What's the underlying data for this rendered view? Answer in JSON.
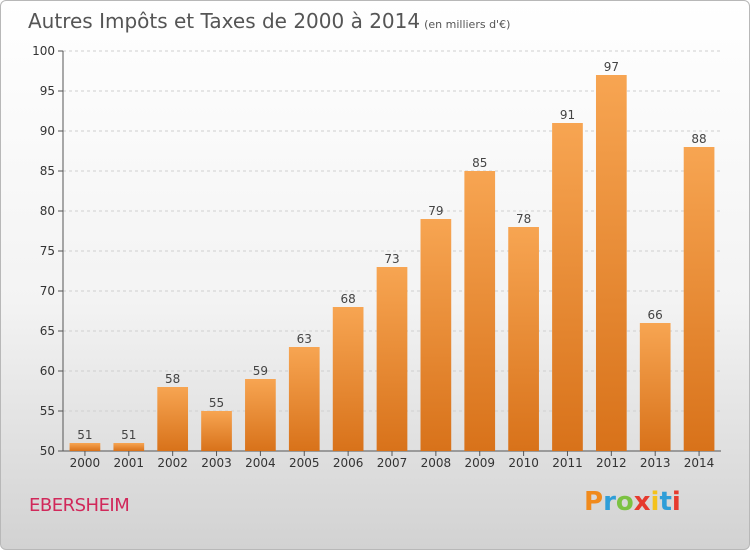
{
  "title": "Autres Impôts et Taxes de 2000 à 2014",
  "subtitle": "(en milliers d'€)",
  "place": "EBERSHEIM",
  "logo": {
    "letters": [
      "P",
      "r",
      "o",
      "x",
      "i",
      "t",
      "i"
    ],
    "colors": [
      "#f08a1c",
      "#2f9ed8",
      "#7cc242",
      "#e63a2e",
      "#f4c21c",
      "#2f9ed8",
      "#e63a2e"
    ]
  },
  "colors": {
    "bar_top": "#f7a552",
    "bar_bottom": "#d8721a",
    "grid": "#cfcfcf"
  },
  "chart_data": {
    "type": "bar",
    "categories": [
      "2000",
      "2001",
      "2002",
      "2003",
      "2004",
      "2005",
      "2006",
      "2007",
      "2008",
      "2009",
      "2010",
      "2011",
      "2012",
      "2013",
      "2014"
    ],
    "values": [
      51,
      51,
      58,
      55,
      59,
      63,
      68,
      73,
      79,
      85,
      78,
      91,
      97,
      66,
      88
    ],
    "title": "Autres Impôts et Taxes de 2000 à 2014",
    "xlabel": "",
    "ylabel": "",
    "ylim": [
      50,
      100
    ],
    "yticks": [
      50,
      55,
      60,
      65,
      70,
      75,
      80,
      85,
      90,
      95,
      100
    ],
    "grid": true,
    "data_labels": true
  }
}
